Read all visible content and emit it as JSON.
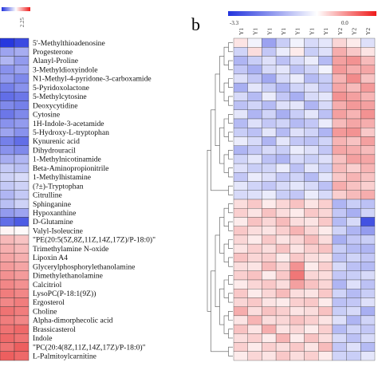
{
  "chart_data": [
    {
      "type": "heatmap",
      "panel": "a",
      "colorbar": {
        "min_label": "",
        "max_label": "2.25",
        "colors": [
          "#2233dd",
          "#ffffff",
          "#ee1a1a"
        ]
      },
      "column_labels": [
        "",
        ""
      ],
      "row_labels": [
        "5'-Methylthioadenosine",
        "Progesterone",
        "Alanyl-Proline",
        "3-Methyldioxyindole",
        "N1-Methyl-4-pyridone-3-carboxamide",
        "5-Pyridoxolactone",
        "5-Methylcytosine",
        "Deoxycytidine",
        "Cytosine",
        "1H-Indole-3-acetamide",
        "5-Hydroxy-L-tryptophan",
        "Kynurenic acid",
        "Dihydrouracil",
        "1-Methylnicotinamide",
        "Beta-Aminopropionitrile",
        "1-Methylhistamine",
        "(?±)-Tryptophan",
        "Citrulline",
        "Sphinganine",
        "Hypoxanthine",
        "D-Glutamine",
        "Valyl-Isoleucine",
        "\"PE(20:5(5Z,8Z,11Z,14Z,17Z)/P-18:0)\"",
        "Trimethylamine N-oxide",
        "Lipoxin A4",
        "Glycerylphosphorylethanolamine",
        "Dimethylethanolamine",
        "Calcitriol",
        "LysoPC(P-18:1(9Z))",
        "Ergosterol",
        "Choline",
        "Alpha-dimorphecolic acid",
        "Brassicasterol",
        "Indole",
        "\"PC(20:4(8Z,11Z,14Z,17Z)/P-18:0)\"",
        "L-Palmitoylcarnitine"
      ],
      "values": [
        [
          -2.2,
          -2.0
        ],
        [
          -1.0,
          -0.9
        ],
        [
          -0.8,
          -1.1
        ],
        [
          -1.2,
          -1.0
        ],
        [
          -1.1,
          -1.3
        ],
        [
          -1.4,
          -1.2
        ],
        [
          -1.6,
          -1.5
        ],
        [
          -1.3,
          -1.4
        ],
        [
          -1.5,
          -1.3
        ],
        [
          -1.2,
          -1.1
        ],
        [
          -1.0,
          -1.2
        ],
        [
          -1.4,
          -1.6
        ],
        [
          -1.2,
          -1.3
        ],
        [
          -0.9,
          -0.8
        ],
        [
          -0.6,
          -0.7
        ],
        [
          -0.5,
          -0.4
        ],
        [
          -0.6,
          -0.5
        ],
        [
          -0.8,
          -0.6
        ],
        [
          -0.7,
          -0.5
        ],
        [
          -1.1,
          -1.0
        ],
        [
          -1.6,
          -1.8
        ],
        [
          0.1,
          0.05
        ],
        [
          0.7,
          0.6
        ],
        [
          0.8,
          0.7
        ],
        [
          0.9,
          0.8
        ],
        [
          1.0,
          0.9
        ],
        [
          1.1,
          1.0
        ],
        [
          1.2,
          1.1
        ],
        [
          1.3,
          1.2
        ],
        [
          1.2,
          1.3
        ],
        [
          1.4,
          1.3
        ],
        [
          1.3,
          1.2
        ],
        [
          1.4,
          1.5
        ],
        [
          1.5,
          1.4
        ],
        [
          1.4,
          1.6
        ],
        [
          1.6,
          1.5
        ]
      ],
      "value_range": [
        -2.25,
        2.25
      ]
    },
    {
      "type": "heatmap",
      "panel": "b",
      "colorbar": {
        "min_label": "-3.3",
        "mid_label": "0.0",
        "colors": [
          "#2233dd",
          "#ffffff",
          "#ee1a1a"
        ]
      },
      "column_labels": [
        "Y1",
        "Y1",
        "Y1",
        "Y1",
        "Y1",
        "Y1",
        "Y1",
        "Y2",
        "Y2",
        "Y2"
      ],
      "n_rows": 36,
      "values": [
        [
          0.4,
          -0.2,
          -1.5,
          -0.8,
          -0.2,
          -0.6,
          -0.4,
          0.6,
          0.3,
          -0.5
        ],
        [
          -0.7,
          0.5,
          -0.9,
          -0.3,
          0.3,
          -0.8,
          -0.5,
          1.2,
          0.8,
          0.4
        ],
        [
          -1.2,
          -0.8,
          -0.5,
          -1.0,
          -0.6,
          -0.3,
          -1.1,
          1.4,
          1.6,
          1.0
        ],
        [
          -0.9,
          -1.3,
          -0.6,
          -0.4,
          -1.0,
          -0.7,
          -0.2,
          1.5,
          1.2,
          1.3
        ],
        [
          -0.5,
          -0.9,
          -1.4,
          -0.6,
          -0.3,
          -1.1,
          -0.8,
          1.1,
          1.7,
          0.9
        ],
        [
          -1.3,
          -0.4,
          -0.8,
          -1.2,
          -0.7,
          -0.5,
          -0.9,
          1.3,
          1.0,
          1.5
        ],
        [
          -0.6,
          -1.1,
          -0.3,
          -0.9,
          -1.3,
          -0.6,
          -0.4,
          1.6,
          1.4,
          1.1
        ],
        [
          -1.0,
          -0.7,
          -1.1,
          -0.5,
          -0.4,
          -1.2,
          -0.6,
          1.2,
          1.5,
          1.4
        ],
        [
          -0.4,
          -1.2,
          -0.7,
          -1.3,
          -0.8,
          -0.4,
          -1.0,
          1.4,
          1.1,
          1.6
        ],
        [
          -1.1,
          -0.5,
          -0.9,
          -0.7,
          -1.1,
          -0.9,
          -0.3,
          1.0,
          1.3,
          1.2
        ],
        [
          -0.8,
          -1.0,
          -0.4,
          -1.1,
          -0.5,
          -0.7,
          -1.2,
          1.5,
          1.6,
          0.8
        ],
        [
          -0.3,
          -0.6,
          -1.2,
          -0.4,
          -0.9,
          -1.0,
          -0.7,
          1.1,
          0.9,
          1.4
        ],
        [
          -1.2,
          -0.9,
          -0.6,
          -0.8,
          -0.3,
          -0.5,
          -0.9,
          1.3,
          1.2,
          1.0
        ],
        [
          -0.7,
          -0.4,
          -1.0,
          -1.2,
          -0.6,
          -0.8,
          -0.5,
          0.9,
          1.4,
          1.3
        ],
        [
          -0.5,
          -0.8,
          -0.7,
          -0.3,
          -1.0,
          -0.4,
          -0.8,
          1.0,
          0.7,
          1.1
        ],
        [
          -0.9,
          -0.3,
          -0.5,
          -0.9,
          -0.7,
          -1.1,
          -0.4,
          0.8,
          1.1,
          0.9
        ],
        [
          -0.4,
          -0.7,
          -0.9,
          -0.6,
          -0.4,
          -0.6,
          -1.0,
          1.2,
          0.9,
          0.7
        ],
        [
          -0.6,
          -0.5,
          -0.3,
          -0.8,
          -0.9,
          -0.3,
          -0.6,
          0.7,
          1.0,
          1.2
        ],
        [
          0.5,
          0.8,
          0.3,
          0.6,
          0.9,
          0.4,
          0.7,
          -1.2,
          -0.8,
          -1.0
        ],
        [
          0.7,
          0.4,
          0.9,
          0.5,
          0.3,
          0.8,
          0.6,
          -0.9,
          -1.3,
          -0.7
        ],
        [
          0.3,
          0.9,
          0.6,
          1.0,
          0.5,
          0.4,
          0.8,
          -1.1,
          -0.6,
          -2.8
        ],
        [
          0.8,
          0.5,
          0.4,
          0.7,
          1.1,
          0.6,
          0.3,
          -0.7,
          -1.2,
          -1.6
        ],
        [
          0.6,
          0.3,
          0.8,
          0.4,
          0.6,
          1.0,
          0.5,
          -1.3,
          -0.9,
          -0.8
        ],
        [
          0.4,
          0.7,
          0.5,
          0.9,
          0.4,
          0.7,
          0.9,
          -0.8,
          -1.1,
          -1.2
        ],
        [
          0.9,
          0.6,
          0.7,
          0.3,
          0.8,
          0.5,
          0.4,
          -1.0,
          -0.7,
          -0.9
        ],
        [
          0.5,
          0.4,
          1.0,
          0.6,
          1.6,
          0.3,
          0.7,
          -0.6,
          -1.0,
          -1.1
        ],
        [
          0.7,
          0.9,
          0.3,
          0.8,
          2.0,
          0.6,
          0.5,
          -0.9,
          -0.8,
          -0.6
        ],
        [
          0.3,
          0.6,
          0.8,
          0.5,
          1.4,
          0.9,
          0.6,
          -1.2,
          -0.5,
          -1.0
        ],
        [
          0.8,
          0.3,
          0.6,
          1.0,
          0.5,
          0.4,
          0.8,
          -0.7,
          -1.1,
          -0.8
        ],
        [
          0.6,
          0.8,
          0.4,
          0.3,
          0.7,
          0.8,
          0.3,
          -1.0,
          -0.9,
          -0.5
        ],
        [
          1.2,
          0.5,
          0.9,
          0.7,
          0.4,
          0.5,
          0.9,
          -0.8,
          -0.6,
          -1.3
        ],
        [
          0.4,
          1.1,
          0.5,
          0.6,
          0.9,
          0.7,
          0.4,
          -0.5,
          -1.2,
          -0.7
        ],
        [
          0.9,
          0.4,
          1.2,
          0.4,
          0.6,
          0.3,
          0.7,
          -1.1,
          -0.7,
          -0.9
        ],
        [
          0.5,
          0.7,
          0.3,
          1.1,
          0.3,
          0.9,
          0.5,
          -0.6,
          -1.0,
          -0.6
        ],
        [
          0.7,
          0.3,
          0.7,
          0.5,
          0.8,
          0.4,
          1.0,
          -0.9,
          -0.5,
          -1.1
        ],
        [
          0.3,
          0.6,
          0.4,
          0.8,
          0.5,
          0.7,
          0.3,
          -0.7,
          -0.8,
          -0.4
        ]
      ],
      "value_range": [
        -3.3,
        3.3
      ]
    }
  ],
  "panel_labels": {
    "b": "b"
  }
}
